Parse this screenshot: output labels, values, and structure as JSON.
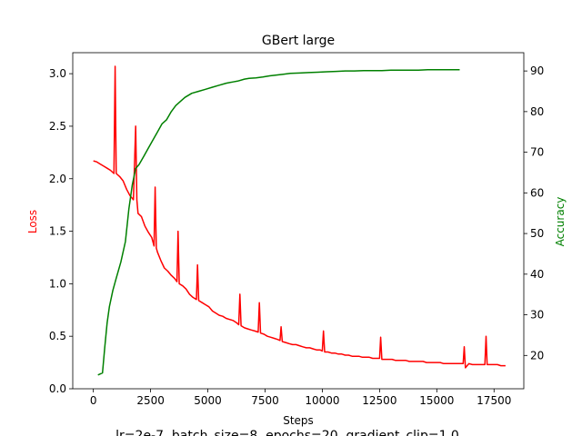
{
  "chart_data": {
    "type": "line",
    "title": "GBert large",
    "xlabel": "Steps",
    "ylabel_left": "Loss",
    "ylabel_right": "Accuracy",
    "footer": "lr=2e-7, batch_size=8, epochs=20, gradient_clip=1.0",
    "xlim": [
      -900,
      18800
    ],
    "ylim_left": [
      0.0,
      3.2
    ],
    "ylim_right": [
      11.8,
      94.5
    ],
    "x_ticks": [
      0,
      2500,
      5000,
      7500,
      10000,
      12500,
      15000,
      17500
    ],
    "y_ticks_left": [
      "0.0",
      "0.5",
      "1.0",
      "1.5",
      "2.0",
      "2.5",
      "3.0"
    ],
    "y_ticks_right": [
      20,
      30,
      40,
      50,
      60,
      70,
      80,
      90
    ],
    "colors": {
      "loss": "#ff0000",
      "accuracy": "#008000",
      "axes": "#000000"
    },
    "series": [
      {
        "name": "Loss",
        "axis": "left",
        "x": [
          0,
          150,
          300,
          450,
          600,
          750,
          900,
          950,
          1000,
          1150,
          1300,
          1450,
          1600,
          1750,
          1850,
          1900,
          1950,
          2100,
          2250,
          2400,
          2550,
          2650,
          2700,
          2750,
          2800,
          2950,
          3100,
          3250,
          3400,
          3550,
          3650,
          3700,
          3750,
          3900,
          4050,
          4200,
          4350,
          4500,
          4550,
          4600,
          4750,
          4900,
          5050,
          5200,
          5350,
          5500,
          5650,
          5800,
          5950,
          6100,
          6250,
          6350,
          6400,
          6450,
          6600,
          6750,
          6900,
          7050,
          7200,
          7250,
          7300,
          7450,
          7600,
          7750,
          7900,
          8050,
          8150,
          8200,
          8250,
          8400,
          8550,
          8700,
          8850,
          9000,
          9150,
          9300,
          9450,
          9600,
          9750,
          9900,
          10000,
          10050,
          10100,
          10250,
          10400,
          10550,
          10700,
          10850,
          11000,
          11150,
          11300,
          11450,
          11600,
          11750,
          11900,
          12050,
          12200,
          12350,
          12500,
          12550,
          12600,
          12750,
          12900,
          13050,
          13200,
          13350,
          13500,
          13650,
          13800,
          13950,
          14100,
          14250,
          14400,
          14550,
          14700,
          14850,
          15000,
          15150,
          15300,
          15450,
          15600,
          15750,
          15900,
          16050,
          16150,
          16200,
          16250,
          16400,
          16550,
          16700,
          16850,
          17000,
          17100,
          17150,
          17200,
          17350,
          17500,
          17650,
          17800,
          17950,
          18000
        ],
        "values": [
          2.17,
          2.16,
          2.14,
          2.12,
          2.1,
          2.08,
          2.05,
          3.07,
          2.05,
          2.02,
          1.98,
          1.9,
          1.84,
          1.8,
          2.5,
          1.8,
          1.67,
          1.64,
          1.55,
          1.49,
          1.44,
          1.36,
          1.92,
          1.34,
          1.3,
          1.22,
          1.15,
          1.12,
          1.08,
          1.05,
          1.02,
          1.5,
          1.0,
          0.98,
          0.95,
          0.9,
          0.87,
          0.85,
          1.18,
          0.84,
          0.82,
          0.8,
          0.78,
          0.74,
          0.72,
          0.7,
          0.69,
          0.67,
          0.66,
          0.65,
          0.63,
          0.61,
          0.9,
          0.6,
          0.58,
          0.57,
          0.56,
          0.55,
          0.54,
          0.82,
          0.53,
          0.52,
          0.5,
          0.49,
          0.48,
          0.47,
          0.46,
          0.59,
          0.45,
          0.44,
          0.43,
          0.42,
          0.42,
          0.41,
          0.4,
          0.39,
          0.39,
          0.38,
          0.37,
          0.37,
          0.36,
          0.55,
          0.35,
          0.35,
          0.34,
          0.34,
          0.33,
          0.33,
          0.32,
          0.32,
          0.31,
          0.31,
          0.31,
          0.3,
          0.3,
          0.3,
          0.29,
          0.29,
          0.29,
          0.49,
          0.28,
          0.28,
          0.28,
          0.28,
          0.27,
          0.27,
          0.27,
          0.27,
          0.26,
          0.26,
          0.26,
          0.26,
          0.26,
          0.25,
          0.25,
          0.25,
          0.25,
          0.25,
          0.24,
          0.24,
          0.24,
          0.24,
          0.24,
          0.24,
          0.24,
          0.4,
          0.2,
          0.24,
          0.23,
          0.23,
          0.23,
          0.23,
          0.23,
          0.5,
          0.23,
          0.23,
          0.23,
          0.23,
          0.22,
          0.22,
          0.22
        ]
      },
      {
        "name": "Accuracy",
        "axis": "right",
        "x": [
          200,
          400,
          500,
          600,
          700,
          850,
          1000,
          1200,
          1400,
          1550,
          1700,
          1850,
          2000,
          2200,
          2400,
          2600,
          2800,
          3000,
          3200,
          3400,
          3600,
          3800,
          4000,
          4300,
          4600,
          4900,
          5200,
          5500,
          5800,
          6100,
          6300,
          6600,
          6800,
          7100,
          7400,
          7700,
          8000,
          8300,
          8600,
          9000,
          9400,
          9800,
          10200,
          10600,
          11000,
          11400,
          11800,
          12200,
          12600,
          13000,
          13400,
          13800,
          14200,
          14600,
          15000,
          15500,
          16000
        ],
        "values": [
          15.2,
          15.7,
          22,
          28,
          32,
          36,
          39,
          43,
          48,
          56,
          62,
          66,
          67,
          69,
          71,
          73,
          75,
          77,
          78,
          80,
          81.5,
          82.5,
          83.5,
          84.5,
          85,
          85.5,
          86,
          86.5,
          87,
          87.3,
          87.5,
          88,
          88.2,
          88.3,
          88.5,
          88.8,
          89,
          89.2,
          89.4,
          89.5,
          89.6,
          89.7,
          89.8,
          89.9,
          90,
          90,
          90.1,
          90.1,
          90.1,
          90.2,
          90.2,
          90.2,
          90.2,
          90.3,
          90.3,
          90.3,
          90.3
        ]
      }
    ]
  }
}
